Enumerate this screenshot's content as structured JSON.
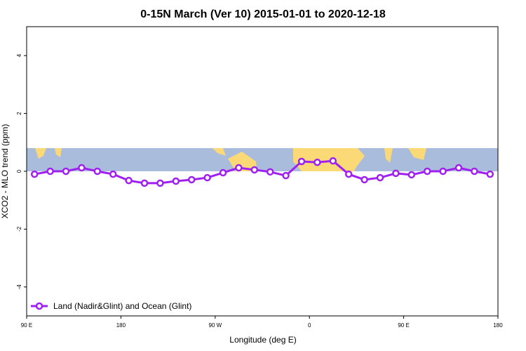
{
  "chart_data": {
    "type": "line",
    "title": "0-15N March (Ver 10)   2015-01-01 to 2020-12-18",
    "xlabel": "Longitude (deg E)",
    "ylabel": "XCO2 - MLO trend (ppm)",
    "x": [
      97.5,
      112.5,
      127.5,
      142.5,
      157.5,
      172.5,
      187.5,
      202.5,
      217.5,
      232.5,
      247.5,
      262.5,
      277.5,
      292.5,
      307.5,
      322.5,
      337.5,
      352.5,
      367.5,
      382.5,
      397.5,
      412.5,
      427.5,
      442.5,
      457.5,
      472.5,
      487.5,
      502.5,
      517.5,
      532.5
    ],
    "series": [
      {
        "name": "Land (Nadir&Glint) and Ocean (Glint)",
        "color": "#a020f0",
        "values": [
          -0.1,
          0.0,
          0.0,
          0.12,
          0.0,
          -0.1,
          -0.32,
          -0.41,
          -0.41,
          -0.34,
          -0.29,
          -0.22,
          -0.05,
          0.12,
          0.05,
          -0.02,
          -0.15,
          0.34,
          0.31,
          0.36,
          -0.1,
          -0.29,
          -0.22,
          -0.07,
          -0.12,
          0.0,
          0.0,
          0.12,
          0.0,
          -0.1
        ]
      }
    ],
    "xlim": [
      90,
      540
    ],
    "xticks": [
      {
        "value": 90,
        "label": "90 E"
      },
      180,
      {
        "value": 270,
        "label": "90 W"
      },
      {
        "value": 360,
        "label": "0"
      },
      {
        "value": 450,
        "label": "90 E"
      },
      {
        "value": 540,
        "label": "180"
      }
    ],
    "ylim": [
      -5,
      5
    ],
    "yticks": [
      -4,
      -2,
      0,
      2,
      4
    ],
    "legend": "bottom-left"
  }
}
